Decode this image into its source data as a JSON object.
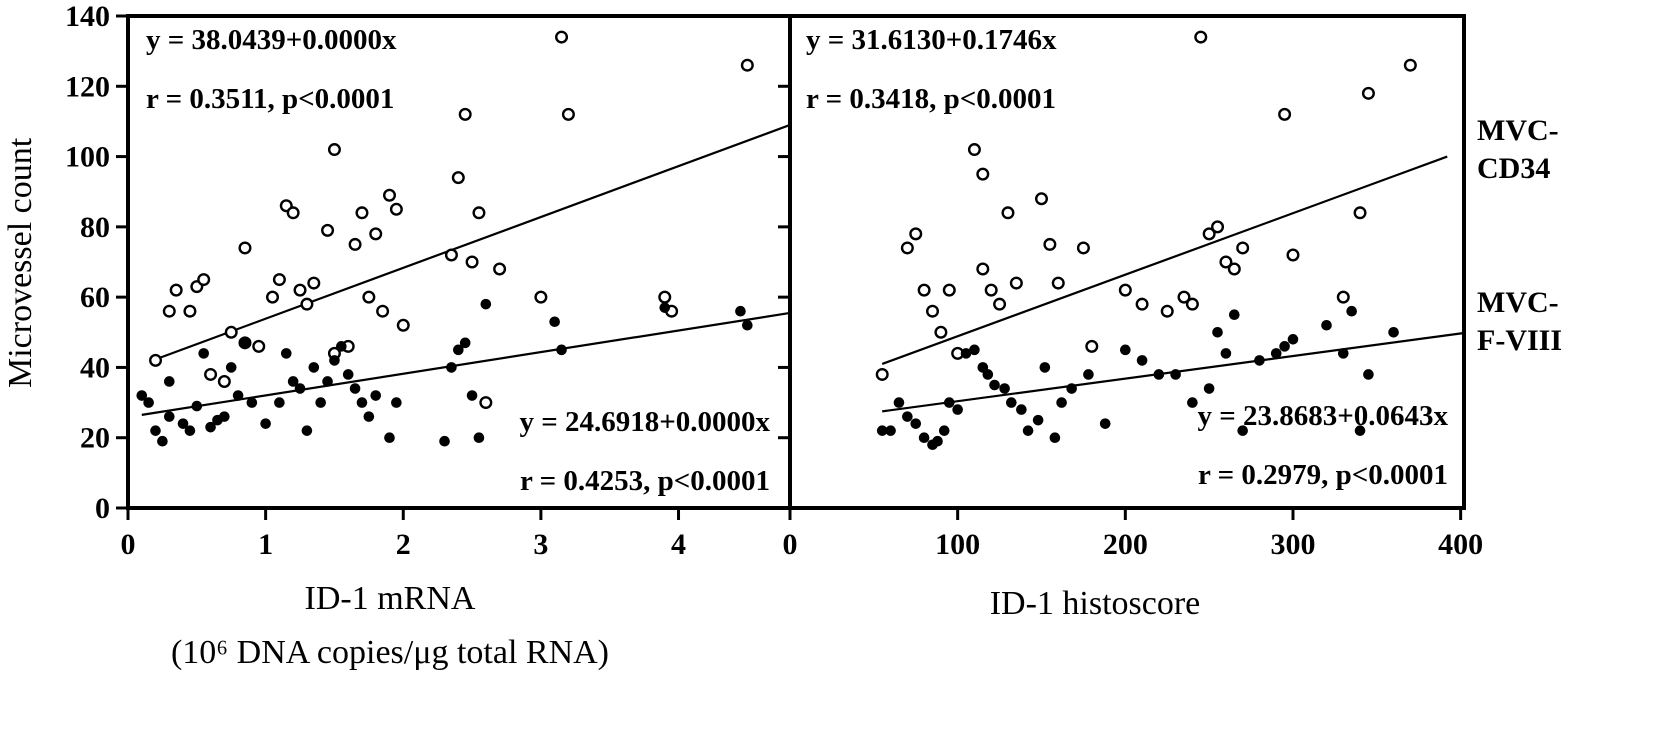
{
  "figure": {
    "ylabel": "Microvessel count",
    "right_labels": [
      {
        "label": "MVC-\nCD34"
      },
      {
        "label": "MVC-\nF-VIII"
      }
    ]
  },
  "chart_data": [
    {
      "type": "scatter",
      "xlabel": "ID-1 mRNA",
      "xlabel_sub": "(10⁶ DNA copies/μg total RNA)",
      "ylabel": "Microvessel count",
      "xlim": [
        0,
        4.81
      ],
      "ylim": [
        0,
        140
      ],
      "xticks": [
        0,
        1,
        2,
        3,
        4
      ],
      "yticks": [
        0,
        20,
        40,
        60,
        80,
        100,
        120,
        140
      ],
      "grid": false,
      "series": [
        {
          "name": "MVC-CD34",
          "marker": "open-circle",
          "equation": "y = 38.0439+0.0000x",
          "stats": "r = 0.3511, p<0.0001",
          "line": {
            "x": [
              0.18,
              4.81
            ],
            "y": [
              42,
              109
            ]
          },
          "points": [
            [
              0.2,
              42
            ],
            [
              0.3,
              56
            ],
            [
              0.35,
              62
            ],
            [
              0.45,
              56
            ],
            [
              0.5,
              63
            ],
            [
              0.55,
              65
            ],
            [
              0.6,
              38
            ],
            [
              0.7,
              36
            ],
            [
              0.75,
              50
            ],
            [
              0.85,
              74
            ],
            [
              0.85,
              47
            ],
            [
              0.95,
              46
            ],
            [
              1.05,
              60
            ],
            [
              1.1,
              65
            ],
            [
              1.15,
              86
            ],
            [
              1.2,
              84
            ],
            [
              1.25,
              62
            ],
            [
              1.3,
              58
            ],
            [
              1.35,
              64
            ],
            [
              1.45,
              79
            ],
            [
              1.5,
              102
            ],
            [
              1.5,
              44
            ],
            [
              1.6,
              46
            ],
            [
              1.65,
              75
            ],
            [
              1.7,
              84
            ],
            [
              1.75,
              60
            ],
            [
              1.8,
              78
            ],
            [
              1.85,
              56
            ],
            [
              1.9,
              89
            ],
            [
              1.95,
              85
            ],
            [
              2.0,
              52
            ],
            [
              2.35,
              72
            ],
            [
              2.4,
              94
            ],
            [
              2.45,
              112
            ],
            [
              2.5,
              70
            ],
            [
              2.55,
              84
            ],
            [
              2.6,
              30
            ],
            [
              2.7,
              68
            ],
            [
              3.0,
              60
            ],
            [
              3.15,
              134
            ],
            [
              3.2,
              112
            ],
            [
              3.9,
              60
            ],
            [
              3.95,
              56
            ],
            [
              4.5,
              126
            ]
          ]
        },
        {
          "name": "MVC-F-VIII",
          "marker": "filled-circle",
          "equation": "y = 24.6918+0.0000x",
          "stats": "r = 0.4253, p<0.0001",
          "line": {
            "x": [
              0.1,
              4.81
            ],
            "y": [
              26.5,
              55.5
            ]
          },
          "points": [
            [
              0.1,
              32
            ],
            [
              0.15,
              30
            ],
            [
              0.2,
              22
            ],
            [
              0.25,
              19
            ],
            [
              0.3,
              26
            ],
            [
              0.3,
              36
            ],
            [
              0.4,
              24
            ],
            [
              0.45,
              22
            ],
            [
              0.5,
              29
            ],
            [
              0.55,
              44
            ],
            [
              0.6,
              23
            ],
            [
              0.65,
              25
            ],
            [
              0.7,
              26
            ],
            [
              0.75,
              40
            ],
            [
              0.8,
              32
            ],
            [
              0.85,
              47
            ],
            [
              0.9,
              30
            ],
            [
              1.0,
              24
            ],
            [
              1.1,
              30
            ],
            [
              1.15,
              44
            ],
            [
              1.2,
              36
            ],
            [
              1.25,
              34
            ],
            [
              1.3,
              22
            ],
            [
              1.35,
              40
            ],
            [
              1.4,
              30
            ],
            [
              1.45,
              36
            ],
            [
              1.5,
              42
            ],
            [
              1.55,
              46
            ],
            [
              1.6,
              38
            ],
            [
              1.65,
              34
            ],
            [
              1.7,
              30
            ],
            [
              1.75,
              26
            ],
            [
              1.8,
              32
            ],
            [
              1.9,
              20
            ],
            [
              1.95,
              30
            ],
            [
              2.3,
              19
            ],
            [
              2.35,
              40
            ],
            [
              2.4,
              45
            ],
            [
              2.45,
              47
            ],
            [
              2.5,
              32
            ],
            [
              2.55,
              20
            ],
            [
              2.6,
              58
            ],
            [
              3.1,
              53
            ],
            [
              3.15,
              45
            ],
            [
              3.9,
              57
            ],
            [
              4.45,
              56
            ],
            [
              4.5,
              52
            ]
          ]
        }
      ]
    },
    {
      "type": "scatter",
      "xlabel": "ID-1 histoscore",
      "ylabel": "Microvessel count",
      "xlim": [
        0,
        402
      ],
      "ylim": [
        0,
        140
      ],
      "xticks": [
        0,
        100,
        200,
        300,
        400
      ],
      "yticks": [
        0,
        20,
        40,
        60,
        80,
        100,
        120,
        140
      ],
      "grid": false,
      "series": [
        {
          "name": "MVC-CD34",
          "marker": "open-circle",
          "equation": "y = 31.6130+0.1746x",
          "stats": "r = 0.3418, p<0.0001",
          "line": {
            "x": [
              55,
              392
            ],
            "y": [
              41,
              100
            ]
          },
          "points": [
            [
              55,
              38
            ],
            [
              70,
              74
            ],
            [
              75,
              78
            ],
            [
              80,
              62
            ],
            [
              85,
              56
            ],
            [
              90,
              50
            ],
            [
              95,
              62
            ],
            [
              100,
              44
            ],
            [
              110,
              102
            ],
            [
              115,
              95
            ],
            [
              115,
              68
            ],
            [
              120,
              62
            ],
            [
              125,
              58
            ],
            [
              130,
              84
            ],
            [
              135,
              64
            ],
            [
              150,
              88
            ],
            [
              155,
              75
            ],
            [
              160,
              64
            ],
            [
              175,
              74
            ],
            [
              180,
              46
            ],
            [
              200,
              62
            ],
            [
              210,
              58
            ],
            [
              225,
              56
            ],
            [
              235,
              60
            ],
            [
              240,
              58
            ],
            [
              245,
              134
            ],
            [
              250,
              78
            ],
            [
              255,
              80
            ],
            [
              260,
              70
            ],
            [
              265,
              68
            ],
            [
              270,
              74
            ],
            [
              295,
              112
            ],
            [
              300,
              72
            ],
            [
              330,
              60
            ],
            [
              340,
              84
            ],
            [
              345,
              118
            ],
            [
              370,
              126
            ]
          ]
        },
        {
          "name": "MVC-F-VIII",
          "marker": "filled-circle",
          "equation": "y = 23.8683+0.0643x",
          "stats": "r = 0.2979, p<0.0001",
          "line": {
            "x": [
              55,
              402
            ],
            "y": [
              27.5,
              49.8
            ]
          },
          "points": [
            [
              55,
              22
            ],
            [
              60,
              22
            ],
            [
              65,
              30
            ],
            [
              70,
              26
            ],
            [
              75,
              24
            ],
            [
              80,
              20
            ],
            [
              85,
              18
            ],
            [
              88,
              19
            ],
            [
              92,
              22
            ],
            [
              95,
              30
            ],
            [
              100,
              28
            ],
            [
              105,
              44
            ],
            [
              110,
              45
            ],
            [
              115,
              40
            ],
            [
              118,
              38
            ],
            [
              122,
              35
            ],
            [
              128,
              34
            ],
            [
              132,
              30
            ],
            [
              138,
              28
            ],
            [
              142,
              22
            ],
            [
              148,
              25
            ],
            [
              152,
              40
            ],
            [
              158,
              20
            ],
            [
              162,
              30
            ],
            [
              168,
              34
            ],
            [
              178,
              38
            ],
            [
              188,
              24
            ],
            [
              200,
              45
            ],
            [
              210,
              42
            ],
            [
              220,
              38
            ],
            [
              230,
              38
            ],
            [
              240,
              30
            ],
            [
              250,
              34
            ],
            [
              255,
              50
            ],
            [
              260,
              44
            ],
            [
              265,
              55
            ],
            [
              270,
              22
            ],
            [
              280,
              42
            ],
            [
              290,
              44
            ],
            [
              295,
              46
            ],
            [
              300,
              48
            ],
            [
              320,
              52
            ],
            [
              330,
              44
            ],
            [
              335,
              56
            ],
            [
              340,
              22
            ],
            [
              345,
              38
            ],
            [
              360,
              50
            ]
          ]
        }
      ]
    }
  ]
}
